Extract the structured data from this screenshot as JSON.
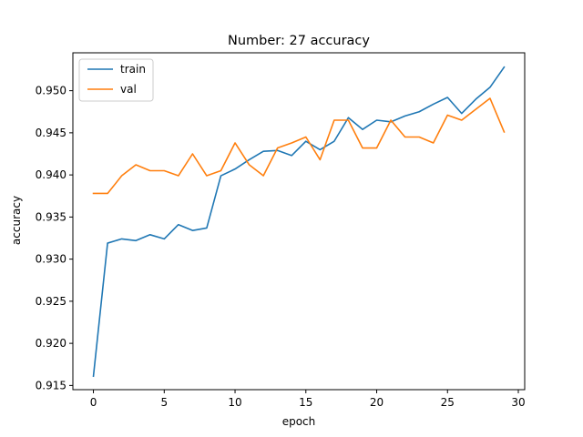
{
  "chart_data": {
    "type": "line",
    "title": "Number: 27 accuracy",
    "xlabel": "epoch",
    "ylabel": "accuracy",
    "xlim": [
      -1.45,
      30.45
    ],
    "ylim": [
      0.9145,
      0.9545
    ],
    "xticks": [
      0,
      5,
      10,
      15,
      20,
      25,
      30
    ],
    "yticks": [
      0.915,
      0.92,
      0.925,
      0.93,
      0.935,
      0.94,
      0.945,
      0.95
    ],
    "ytick_format": 3,
    "grid": false,
    "legend_position": "top-left",
    "x": [
      0,
      1,
      2,
      3,
      4,
      5,
      6,
      7,
      8,
      9,
      10,
      11,
      12,
      13,
      14,
      15,
      16,
      17,
      18,
      19,
      20,
      21,
      22,
      23,
      24,
      25,
      26,
      27,
      28,
      29
    ],
    "series": [
      {
        "name": "train",
        "color": "#1f77b4",
        "values": [
          0.9161,
          0.9319,
          0.9324,
          0.9322,
          0.9329,
          0.9324,
          0.9341,
          0.9334,
          0.9337,
          0.9399,
          0.9407,
          0.9418,
          0.9428,
          0.9429,
          0.9423,
          0.944,
          0.943,
          0.944,
          0.9468,
          0.9454,
          0.9465,
          0.9463,
          0.947,
          0.9475,
          0.9484,
          0.9492,
          0.9473,
          0.949,
          0.9504,
          0.9528
        ]
      },
      {
        "name": "val",
        "color": "#ff7f0e",
        "values": [
          0.9378,
          0.9378,
          0.9399,
          0.9412,
          0.9405,
          0.9405,
          0.9399,
          0.9425,
          0.9399,
          0.9405,
          0.9438,
          0.9412,
          0.9399,
          0.9432,
          0.9438,
          0.9445,
          0.9418,
          0.9465,
          0.9465,
          0.9432,
          0.9432,
          0.9465,
          0.9445,
          0.9445,
          0.9438,
          0.9471,
          0.9465,
          0.9478,
          0.9491,
          0.9451
        ]
      }
    ]
  }
}
